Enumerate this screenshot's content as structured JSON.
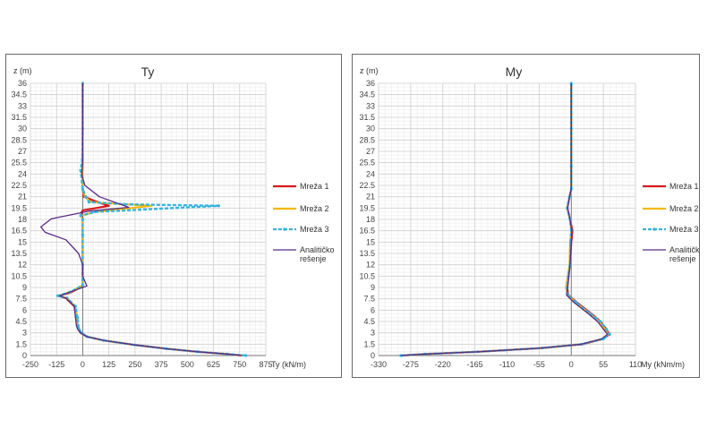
{
  "chart_data": [
    {
      "type": "line",
      "title": "Ty",
      "xlabel": "Ty (kN/m)",
      "ylabel": "z (m)",
      "xlim": [
        -250,
        875
      ],
      "ylim": [
        0,
        36
      ],
      "xticks": [
        "-250",
        "-125",
        "0",
        "125",
        "250",
        "375",
        "500",
        "625",
        "750",
        "875"
      ],
      "yticks": [
        "0",
        "1.5",
        "3",
        "4.5",
        "6",
        "7.5",
        "9",
        "10.5",
        "12",
        "13.5",
        "15",
        "16.5",
        "18",
        "19.5",
        "21",
        "22.5",
        "24",
        "25.5",
        "27",
        "28.5",
        "30",
        "31.5",
        "33",
        "34.5",
        "36"
      ],
      "grid": true,
      "legend_position": "right",
      "series": [
        {
          "name": "Mreža 1",
          "color": "#d7191c",
          "points": [
            [
              0,
              36
            ],
            [
              0,
              30
            ],
            [
              0,
              26
            ],
            [
              -2,
              24
            ],
            [
              0,
              22
            ],
            [
              5,
              21
            ],
            [
              60,
              20.4
            ],
            [
              125,
              19.8
            ],
            [
              0,
              19.2
            ],
            [
              -5,
              19
            ],
            [
              0,
              18
            ],
            [
              0,
              16
            ],
            [
              0,
              12
            ],
            [
              0,
              10
            ],
            [
              0,
              9.2
            ],
            [
              -60,
              8.3
            ],
            [
              -120,
              7.9
            ],
            [
              -80,
              7.6
            ],
            [
              -40,
              6.5
            ],
            [
              -30,
              5
            ],
            [
              -28,
              4
            ],
            [
              -22,
              3.5
            ],
            [
              -10,
              3
            ],
            [
              20,
              2.5
            ],
            [
              100,
              2
            ],
            [
              250,
              1.4
            ],
            [
              400,
              0.9
            ],
            [
              550,
              0.5
            ],
            [
              690,
              0.2
            ],
            [
              760,
              0
            ]
          ]
        },
        {
          "name": "Mreža 2",
          "color": "#f5b800",
          "points": [
            [
              0,
              36
            ],
            [
              0,
              30
            ],
            [
              0,
              26
            ],
            [
              -3,
              24
            ],
            [
              0,
              22
            ],
            [
              10,
              21
            ],
            [
              40,
              20.3
            ],
            [
              200,
              20
            ],
            [
              330,
              19.8
            ],
            [
              60,
              19
            ],
            [
              -10,
              18.5
            ],
            [
              0,
              18
            ],
            [
              0,
              16
            ],
            [
              0,
              12
            ],
            [
              0,
              10
            ],
            [
              0,
              9.3
            ],
            [
              -60,
              8.4
            ],
            [
              -120,
              7.9
            ],
            [
              -75,
              7.6
            ],
            [
              -38,
              6.5
            ],
            [
              -28,
              5
            ],
            [
              -25,
              4
            ],
            [
              -20,
              3.5
            ],
            [
              -8,
              3
            ],
            [
              20,
              2.5
            ],
            [
              100,
              2
            ],
            [
              250,
              1.4
            ],
            [
              400,
              0.9
            ],
            [
              550,
              0.5
            ],
            [
              690,
              0.2
            ],
            [
              765,
              0
            ]
          ]
        },
        {
          "name": "Mreža 3",
          "color": "#35b4e0",
          "points": [
            [
              0,
              36
            ],
            [
              0,
              30
            ],
            [
              -2,
              26
            ],
            [
              -10,
              24.5
            ],
            [
              0,
              22
            ],
            [
              15,
              21
            ],
            [
              30,
              20.3
            ],
            [
              200,
              20
            ],
            [
              650,
              19.8
            ],
            [
              60,
              19
            ],
            [
              -10,
              18.5
            ],
            [
              0,
              18
            ],
            [
              0,
              16
            ],
            [
              0,
              12
            ],
            [
              0,
              10
            ],
            [
              0,
              9.3
            ],
            [
              -60,
              8.4
            ],
            [
              -120,
              7.9
            ],
            [
              -75,
              7.6
            ],
            [
              -35,
              6.5
            ],
            [
              -25,
              5
            ],
            [
              -22,
              4
            ],
            [
              -18,
              3.5
            ],
            [
              -6,
              3
            ],
            [
              20,
              2.5
            ],
            [
              100,
              2
            ],
            [
              250,
              1.4
            ],
            [
              400,
              0.9
            ],
            [
              550,
              0.5
            ],
            [
              690,
              0.2
            ],
            [
              780,
              0
            ]
          ]
        },
        {
          "name": "Analitičko rešenje",
          "color": "#5b2a86",
          "points": [
            [
              0,
              36
            ],
            [
              0,
              30
            ],
            [
              0,
              25.5
            ],
            [
              -5,
              24
            ],
            [
              10,
              22.5
            ],
            [
              80,
              21
            ],
            [
              170,
              20.1
            ],
            [
              220,
              19.6
            ],
            [
              30,
              19.1
            ],
            [
              -150,
              18.1
            ],
            [
              -200,
              17
            ],
            [
              -180,
              16.3
            ],
            [
              -80,
              15.3
            ],
            [
              -20,
              13.5
            ],
            [
              0,
              12
            ],
            [
              0,
              10.5
            ],
            [
              10,
              9.8
            ],
            [
              20,
              9.2
            ],
            [
              -50,
              8.5
            ],
            [
              -110,
              7.9
            ],
            [
              -80,
              7.6
            ],
            [
              -40,
              6.5
            ],
            [
              -35,
              5
            ],
            [
              -30,
              4
            ],
            [
              -25,
              3.5
            ],
            [
              -10,
              3
            ],
            [
              20,
              2.5
            ],
            [
              100,
              2
            ],
            [
              250,
              1.4
            ],
            [
              400,
              0.9
            ],
            [
              550,
              0.5
            ],
            [
              690,
              0.2
            ],
            [
              760,
              0
            ]
          ]
        }
      ]
    },
    {
      "type": "line",
      "title": "My",
      "xlabel": "My (kNm/m)",
      "ylabel": "z (m)",
      "xlim": [
        -330,
        110
      ],
      "ylim": [
        0,
        36
      ],
      "xticks": [
        "-330",
        "-275",
        "-220",
        "-165",
        "-110",
        "-55",
        "0",
        "55",
        "110"
      ],
      "yticks": [
        "0",
        "1.5",
        "3",
        "4.5",
        "6",
        "7.5",
        "9",
        "10.5",
        "12",
        "13.5",
        "15",
        "16.5",
        "18",
        "19.5",
        "21",
        "22.5",
        "24",
        "25.5",
        "27",
        "28.5",
        "30",
        "31.5",
        "33",
        "34.5",
        "36"
      ],
      "grid": true,
      "legend_position": "right",
      "series": [
        {
          "name": "Mreža 1",
          "color": "#d7191c",
          "points": [
            [
              0,
              36
            ],
            [
              0,
              30
            ],
            [
              0,
              25
            ],
            [
              0,
              22
            ],
            [
              -3,
              21
            ],
            [
              -7,
              19.5
            ],
            [
              -2,
              18
            ],
            [
              2,
              16.5
            ],
            [
              0,
              15
            ],
            [
              -2,
              12
            ],
            [
              -5,
              10.5
            ],
            [
              -7,
              9
            ],
            [
              -5,
              8
            ],
            [
              10,
              7
            ],
            [
              35,
              5.5
            ],
            [
              50,
              4.5
            ],
            [
              60,
              3.5
            ],
            [
              65,
              2.8
            ],
            [
              55,
              2.2
            ],
            [
              20,
              1.5
            ],
            [
              -50,
              1
            ],
            [
              -160,
              0.5
            ],
            [
              -250,
              0.2
            ],
            [
              -290,
              0
            ]
          ]
        },
        {
          "name": "Mreža 2",
          "color": "#f5b800",
          "points": [
            [
              0,
              36
            ],
            [
              0,
              30
            ],
            [
              0,
              25
            ],
            [
              0,
              22
            ],
            [
              -3,
              21
            ],
            [
              -7,
              19.5
            ],
            [
              -2,
              18
            ],
            [
              0,
              16.5
            ],
            [
              -2,
              15
            ],
            [
              -3,
              12
            ],
            [
              -6,
              10.5
            ],
            [
              -9,
              9
            ],
            [
              -6,
              8
            ],
            [
              8,
              7
            ],
            [
              33,
              5.5
            ],
            [
              48,
              4.5
            ],
            [
              58,
              3.5
            ],
            [
              63,
              2.8
            ],
            [
              53,
              2.2
            ],
            [
              18,
              1.5
            ],
            [
              -50,
              1
            ],
            [
              -160,
              0.5
            ],
            [
              -250,
              0.2
            ],
            [
              -292,
              0
            ]
          ]
        },
        {
          "name": "Mreža 3",
          "color": "#35b4e0",
          "points": [
            [
              0,
              36
            ],
            [
              0,
              30
            ],
            [
              0,
              25
            ],
            [
              0,
              22
            ],
            [
              -3,
              21
            ],
            [
              -7,
              19.5
            ],
            [
              -2,
              18
            ],
            [
              0,
              16.5
            ],
            [
              -1,
              15
            ],
            [
              -2,
              12
            ],
            [
              -5,
              10.5
            ],
            [
              -7,
              9
            ],
            [
              -6,
              8
            ],
            [
              8,
              7
            ],
            [
              33,
              5.5
            ],
            [
              50,
              4.5
            ],
            [
              60,
              3.5
            ],
            [
              66,
              2.8
            ],
            [
              55,
              2.2
            ],
            [
              18,
              1.5
            ],
            [
              -50,
              1
            ],
            [
              -160,
              0.5
            ],
            [
              -250,
              0.2
            ],
            [
              -292,
              0
            ]
          ]
        },
        {
          "name": "Analitičko rešenje",
          "color": "#5b2a86",
          "points": [
            [
              0,
              36
            ],
            [
              0,
              30
            ],
            [
              0,
              25
            ],
            [
              0,
              22
            ],
            [
              -3,
              21
            ],
            [
              -6,
              19.5
            ],
            [
              -2,
              18
            ],
            [
              1,
              16.5
            ],
            [
              0,
              15
            ],
            [
              -2,
              12
            ],
            [
              -4,
              10.5
            ],
            [
              -6,
              9
            ],
            [
              -8,
              8
            ],
            [
              5,
              7
            ],
            [
              30,
              5.5
            ],
            [
              45,
              4.5
            ],
            [
              55,
              3.5
            ],
            [
              62,
              2.8
            ],
            [
              52,
              2.2
            ],
            [
              18,
              1.5
            ],
            [
              -50,
              1
            ],
            [
              -160,
              0.5
            ],
            [
              -250,
              0.2
            ],
            [
              -292,
              0
            ]
          ]
        }
      ]
    }
  ]
}
